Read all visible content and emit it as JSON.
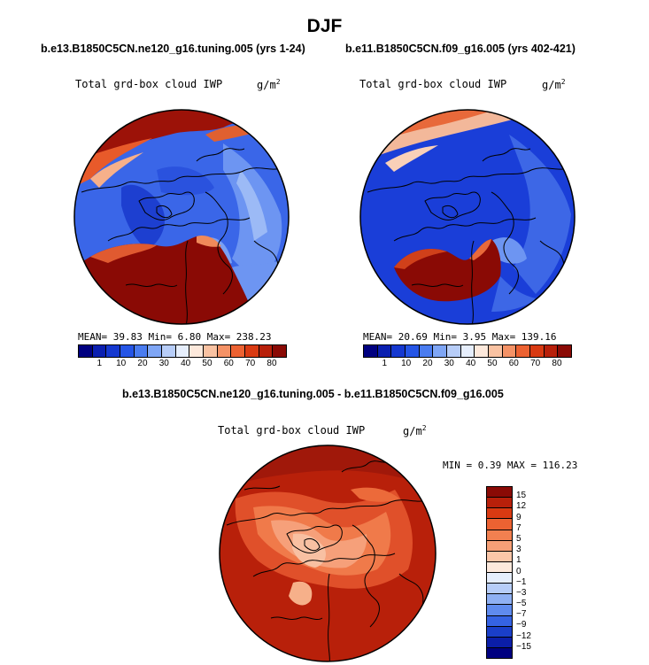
{
  "title": "DJF",
  "panels": [
    {
      "title": "b.e13.B1850C5CN.ne120_g16.tuning.005 (yrs 1-24)",
      "variable": "Total grd-box cloud IWP",
      "units": "g/m",
      "units_exp": "2",
      "stats": "MEAN=  39.83   Min=   6.80   Max= 238.23"
    },
    {
      "title": "b.e11.B1850C5CN.f09_g16.005 (yrs 402-421)",
      "variable": "Total grd-box cloud IWP",
      "units": "g/m",
      "units_exp": "2",
      "stats": "MEAN=  20.69   Min=   3.95   Max= 139.16"
    }
  ],
  "diff": {
    "title": "b.e13.B1850C5CN.ne120_g16.tuning.005 - b.e11.B1850C5CN.f09_g16.005",
    "variable": "Total grd-box cloud IWP",
    "units": "g/m",
    "units_exp": "2",
    "stats": "MIN =    0.39 MAX = 116.23"
  },
  "colorbar_levels": [
    "1",
    "10",
    "20",
    "30",
    "40",
    "50",
    "60",
    "70",
    "80"
  ],
  "colorbar_colors": [
    "#000080",
    "#0a1fb0",
    "#1538d0",
    "#2555e6",
    "#4a7cf0",
    "#7fa6f5",
    "#b7cdf8",
    "#e6eefc",
    "#fde9dc",
    "#f9c2a2",
    "#f49266",
    "#ec6232",
    "#d93a12",
    "#b8200a",
    "#8a0a05"
  ],
  "diff_levels": [
    "15",
    "12",
    "9",
    "7",
    "5",
    "3",
    "1",
    "0",
    "−1",
    "−3",
    "−5",
    "−7",
    "−9",
    "−12",
    "−15"
  ],
  "diff_colors": [
    "#8a0a05",
    "#b8200a",
    "#d93a12",
    "#ec6232",
    "#f28050",
    "#f7a077",
    "#fbc6a8",
    "#fde9dc",
    "#e6eefc",
    "#b7cdf8",
    "#8fb0f3",
    "#5f8bee",
    "#3563e3",
    "#1a3fc9",
    "#0b1ea8",
    "#000080"
  ]
}
